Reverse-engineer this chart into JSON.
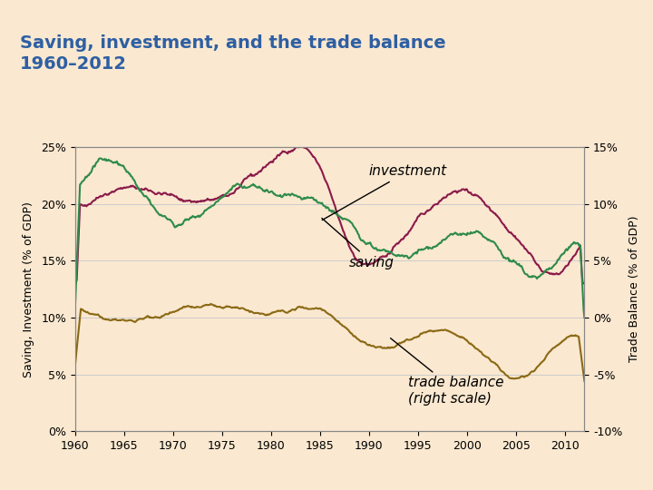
{
  "title": "Saving, investment, and the trade balance\n1960–2012",
  "title_color": "#2E5FA3",
  "bg_color": "#FAE8D0",
  "plot_bg_color": "#FAE8D0",
  "ylabel_left": "Saving, Investment (% of GDP)",
  "ylabel_right": "Trade Balance (% of GDP)",
  "xlabel": "",
  "ylim_left": [
    0,
    25
  ],
  "ylim_right": [
    -10,
    15
  ],
  "yticks_left": [
    0,
    5,
    10,
    15,
    20,
    25
  ],
  "yticks_right": [
    -10,
    -5,
    0,
    5,
    10,
    15
  ],
  "ytick_labels_left": [
    "0%",
    "5%",
    "10%",
    "15%",
    "20%",
    "25%"
  ],
  "ytick_labels_right": [
    "-10%",
    "-5%",
    "0%",
    "5%",
    "10%",
    "15%"
  ],
  "xticks": [
    1960,
    1965,
    1970,
    1975,
    1980,
    1985,
    1990,
    1995,
    2000,
    2005,
    2010
  ],
  "investment_color": "#8B1A4A",
  "saving_color": "#2E8B4A",
  "trade_balance_color": "#8B6914",
  "annotation_color": "#000000",
  "grid_color": "#CCCCCC",
  "line_width": 1.5
}
